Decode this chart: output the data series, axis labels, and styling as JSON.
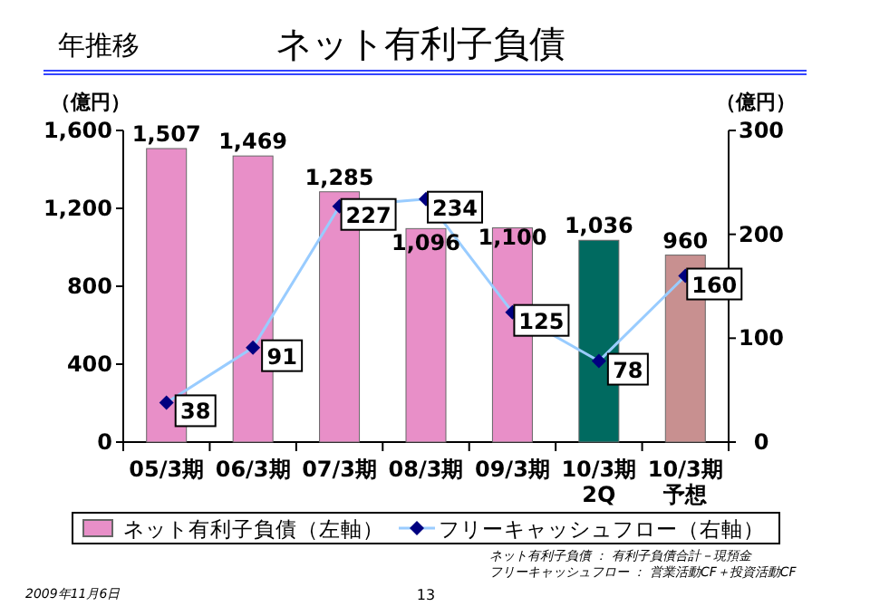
{
  "chart_data": {
    "type": "bar",
    "title": "ネット有利子負債",
    "subtitle": "年推移",
    "ylabel": "（億円）",
    "y2label": "（億円）",
    "categories": [
      "05/3期",
      "06/3期",
      "07/3期",
      "08/3期",
      "09/3期",
      "10/3期2Q",
      "10/3期予想"
    ],
    "series": [
      {
        "name": "ネット有利子負債（左軸）",
        "color": "#e88fc8",
        "colors": [
          "#e88fc8",
          "#e88fc8",
          "#e88fc8",
          "#e88fc8",
          "#e88fc8",
          "#006a60",
          "#c89090"
        ],
        "values": [
          1507,
          1469,
          1285,
          1096,
          1100,
          1036,
          960
        ],
        "value_labels": [
          "1,507",
          "1,469",
          "1,285",
          "1,096",
          "1,100",
          "1,036",
          "960"
        ]
      },
      {
        "name": "フリーキャッシュフロー（右軸）",
        "type": "line",
        "axis": "y2",
        "color": "#99ccff",
        "marker": "diamond",
        "values": [
          38,
          91,
          227,
          234,
          125,
          78,
          160
        ]
      }
    ],
    "ylim": [
      0,
      1600
    ],
    "yticks": [
      {
        "value": 0,
        "label": "0"
      },
      {
        "value": 400,
        "label": "400"
      },
      {
        "value": 800,
        "label": "800"
      },
      {
        "value": 1200,
        "label": "1,200"
      },
      {
        "value": 1600,
        "label": "1,600"
      }
    ],
    "y2lim": [
      0,
      300
    ],
    "y2ticks": [
      0,
      100,
      200,
      300
    ],
    "data_labels": true,
    "legend": "bottom",
    "annotations": [
      "ネット有利子負債 ： 有利子負債合計－現預金",
      "フリーキャッシュフロー ： 営業活動CF＋投資活動CF",
      "2009年11月6日",
      "13"
    ]
  }
}
